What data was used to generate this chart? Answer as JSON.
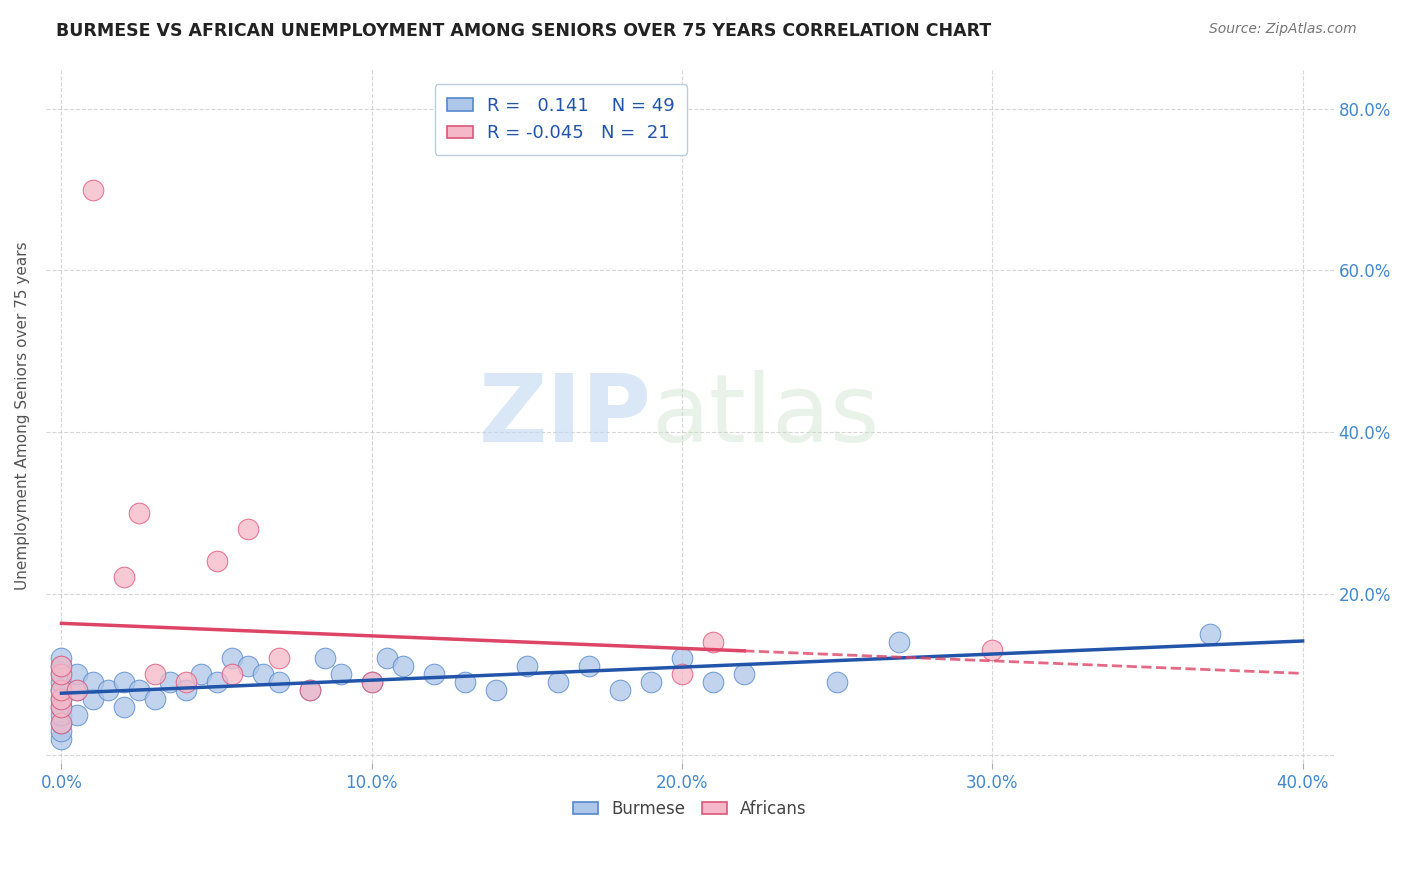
{
  "title": "BURMESE VS AFRICAN UNEMPLOYMENT AMONG SENIORS OVER 75 YEARS CORRELATION CHART",
  "source": "Source: ZipAtlas.com",
  "ylabel": "Unemployment Among Seniors over 75 years",
  "xlabel_burmese": "Burmese",
  "xlabel_african": "Africans",
  "xlim": [
    -0.005,
    0.41
  ],
  "ylim": [
    -0.01,
    0.85
  ],
  "xticks": [
    0.0,
    0.1,
    0.2,
    0.3,
    0.4
  ],
  "xtick_labels": [
    "0.0%",
    "10.0%",
    "20.0%",
    "30.0%",
    "40.0%"
  ],
  "yticks": [
    0.0,
    0.2,
    0.4,
    0.6,
    0.8
  ],
  "ytick_labels": [
    "",
    "20.0%",
    "40.0%",
    "60.0%",
    "80.0%"
  ],
  "burmese_color": "#aec6e8",
  "african_color": "#f5b8c8",
  "burmese_edge_color": "#5588cc",
  "african_edge_color": "#dd5577",
  "burmese_line_color": "#2255aa",
  "african_line_color": "#dd4466",
  "R_burmese": 0.141,
  "N_burmese": 49,
  "R_african": -0.045,
  "N_african": 21,
  "burmese_scatter_x": [
    0.0,
    0.0,
    0.0,
    0.0,
    0.0,
    0.0,
    0.0,
    0.0,
    0.0,
    0.0,
    0.0,
    0.005,
    0.005,
    0.005,
    0.01,
    0.01,
    0.015,
    0.02,
    0.02,
    0.025,
    0.03,
    0.035,
    0.04,
    0.045,
    0.05,
    0.055,
    0.06,
    0.065,
    0.07,
    0.08,
    0.085,
    0.09,
    0.1,
    0.105,
    0.11,
    0.12,
    0.13,
    0.14,
    0.15,
    0.16,
    0.17,
    0.18,
    0.19,
    0.2,
    0.21,
    0.22,
    0.25,
    0.27,
    0.37
  ],
  "burmese_scatter_y": [
    0.02,
    0.03,
    0.04,
    0.05,
    0.06,
    0.07,
    0.08,
    0.09,
    0.1,
    0.11,
    0.12,
    0.05,
    0.08,
    0.1,
    0.07,
    0.09,
    0.08,
    0.06,
    0.09,
    0.08,
    0.07,
    0.09,
    0.08,
    0.1,
    0.09,
    0.12,
    0.11,
    0.1,
    0.09,
    0.08,
    0.12,
    0.1,
    0.09,
    0.12,
    0.11,
    0.1,
    0.09,
    0.08,
    0.11,
    0.09,
    0.11,
    0.08,
    0.09,
    0.12,
    0.09,
    0.1,
    0.09,
    0.14,
    0.15
  ],
  "african_scatter_x": [
    0.0,
    0.0,
    0.0,
    0.0,
    0.0,
    0.0,
    0.005,
    0.01,
    0.02,
    0.025,
    0.03,
    0.04,
    0.05,
    0.055,
    0.06,
    0.07,
    0.08,
    0.1,
    0.2,
    0.21,
    0.3
  ],
  "african_scatter_y": [
    0.04,
    0.06,
    0.07,
    0.08,
    0.1,
    0.11,
    0.08,
    0.7,
    0.22,
    0.3,
    0.1,
    0.09,
    0.24,
    0.1,
    0.28,
    0.12,
    0.08,
    0.09,
    0.1,
    0.14,
    0.13
  ],
  "watermark_zip": "ZIP",
  "watermark_atlas": "atlas",
  "background_color": "#ffffff",
  "grid_color": "#cccccc"
}
